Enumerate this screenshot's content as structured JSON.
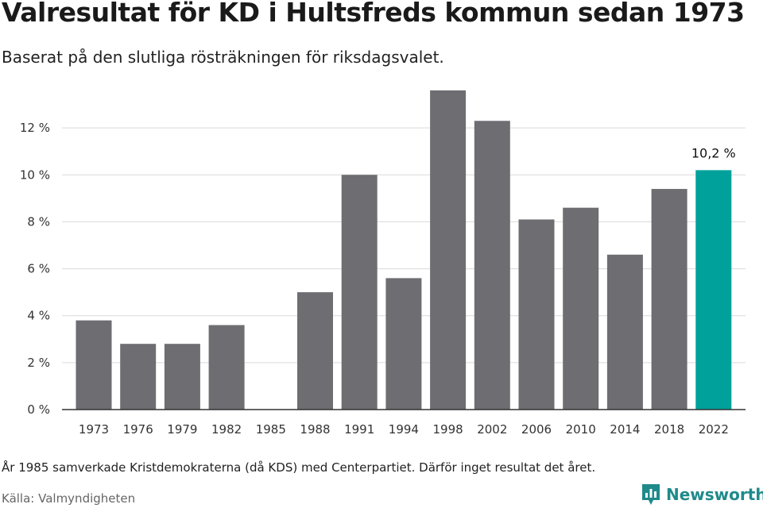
{
  "title": "Valresultat för KD i Hultsfreds kommun sedan 1973",
  "subtitle": "Baserat på den slutliga rösträkningen för riksdagsvalet.",
  "footnote": "År 1985 samverkade Kristdemokraterna (då KDS) med Centerpartiet. Därför inget resultat det året.",
  "source": "Källa: Valmyndigheten",
  "brand": {
    "name": "Newsworthy",
    "icon": "newsworthy-logo-icon",
    "color": "#1f8a8a"
  },
  "colors": {
    "bar": "#6e6d72",
    "highlight": "#00a19a",
    "grid": "#d9d9d9",
    "axis": "#333333"
  },
  "chart_data": {
    "type": "bar",
    "categories": [
      "1973",
      "1976",
      "1979",
      "1982",
      "1985",
      "1988",
      "1991",
      "1994",
      "1998",
      "2002",
      "2006",
      "2010",
      "2014",
      "2018",
      "2022"
    ],
    "values": [
      3.8,
      2.8,
      2.8,
      3.6,
      null,
      5.0,
      10.0,
      5.6,
      13.6,
      12.3,
      8.1,
      8.6,
      6.6,
      9.4,
      10.2
    ],
    "highlight_index": 14,
    "data_labels": [
      {
        "category": "2022",
        "text": "10,2 %"
      }
    ],
    "yticks": [
      "0 %",
      "2 %",
      "4 %",
      "6 %",
      "8 %",
      "10 %",
      "12 %"
    ],
    "ytick_values": [
      0,
      2,
      4,
      6,
      8,
      10,
      12
    ],
    "ylim": [
      0,
      14
    ],
    "xlabel": "",
    "ylabel": "",
    "grid": true,
    "legend": "none"
  }
}
